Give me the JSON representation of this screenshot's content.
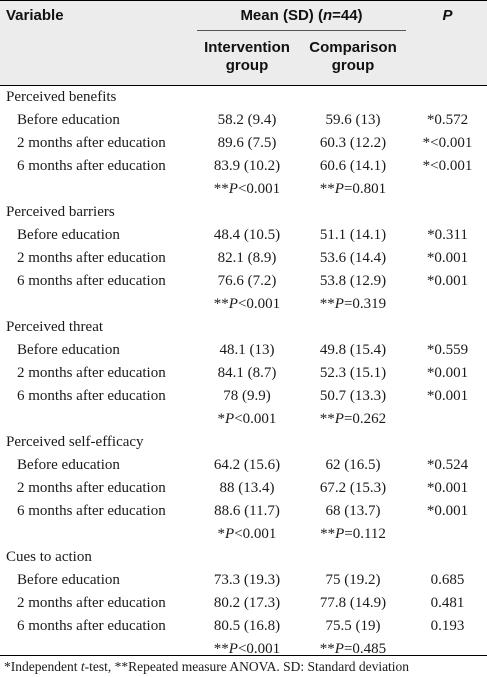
{
  "header": {
    "variable": "Variable",
    "mean_sd": "Mean (SD) (",
    "n": "n",
    "n_value": "=44)",
    "p": "P",
    "col_intervention": [
      "Intervention",
      "group"
    ],
    "col_comparison": [
      "Comparison",
      "group"
    ]
  },
  "sections": [
    {
      "title": "Perceived benefits",
      "rows": [
        {
          "label": "Before education",
          "intervention": "58.2 (9.4)",
          "comparison": "59.6 (13)",
          "p": "*0.572"
        },
        {
          "label": "2 months after education",
          "intervention": "89.6 (7.5)",
          "comparison": "60.3 (12.2)",
          "p": "*<0.001"
        },
        {
          "label": "6 months after education",
          "intervention": "83.9 (10.2)",
          "comparison": "60.6 (14.1)",
          "p": "*<0.001"
        }
      ],
      "summary": {
        "intervention": "**P<0.001",
        "comparison": "**P=0.801"
      }
    },
    {
      "title": "Perceived barriers",
      "rows": [
        {
          "label": "Before education",
          "intervention": "48.4 (10.5)",
          "comparison": "51.1 (14.1)",
          "p": "*0.311"
        },
        {
          "label": "2 months after education",
          "intervention": "82.1 (8.9)",
          "comparison": "53.6 (14.4)",
          "p": "*0.001"
        },
        {
          "label": "6 months after education",
          "intervention": "76.6 (7.2)",
          "comparison": "53.8 (12.9)",
          "p": "*0.001"
        }
      ],
      "summary": {
        "intervention": "**P<0.001",
        "comparison": "**P=0.319"
      }
    },
    {
      "title": "Perceived threat",
      "rows": [
        {
          "label": "Before education",
          "intervention": "48.1 (13)",
          "comparison": "49.8 (15.4)",
          "p": "*0.559"
        },
        {
          "label": "2 months after education",
          "intervention": "84.1 (8.7)",
          "comparison": "52.3 (15.1)",
          "p": "*0.001"
        },
        {
          "label": "6 months after education",
          "intervention": "78 (9.9)",
          "comparison": "50.7 (13.3)",
          "p": "*0.001"
        }
      ],
      "summary": {
        "intervention": "*P<0.001",
        "comparison": "**P=0.262"
      }
    },
    {
      "title": "Perceived self-efficacy",
      "rows": [
        {
          "label": "Before education",
          "intervention": "64.2 (15.6)",
          "comparison": "62 (16.5)",
          "p": "*0.524"
        },
        {
          "label": "2 months after education",
          "intervention": "88 (13.4)",
          "comparison": "67.2 (15.3)",
          "p": "*0.001"
        },
        {
          "label": "6 months after education",
          "intervention": "88.6 (11.7)",
          "comparison": "68 (13.7)",
          "p": "*0.001"
        }
      ],
      "summary": {
        "intervention": "*P<0.001",
        "comparison": "**P=0.112"
      }
    },
    {
      "title": "Cues to action",
      "rows": [
        {
          "label": "Before education",
          "intervention": "73.3 (19.3)",
          "comparison": "75 (19.2)",
          "p": "0.685"
        },
        {
          "label": "2 months after education",
          "intervention": "80.2 (17.3)",
          "comparison": "77.8 (14.9)",
          "p": "0.481"
        },
        {
          "label": "6 months after education",
          "intervention": "80.5 (16.8)",
          "comparison": "75.5 (19)",
          "p": "0.193"
        }
      ],
      "summary": {
        "intervention": "**P<0.001",
        "comparison": "**P=0.485"
      }
    }
  ],
  "footnote": "*Independent t-test, **Repeated measure ANOVA. SD: Standard deviation"
}
